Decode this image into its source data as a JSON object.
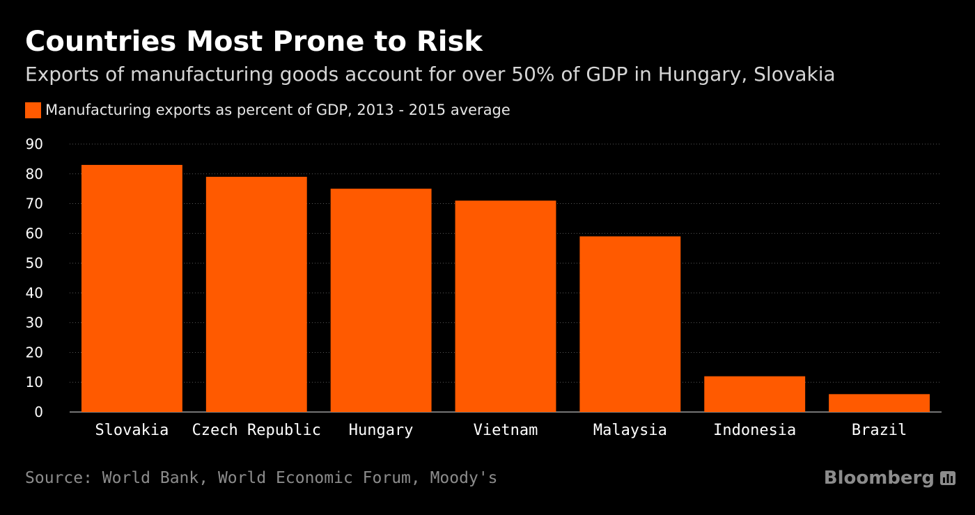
{
  "header": {
    "title": "Countries Most Prone to Risk",
    "subtitle": "Exports of manufacturing goods account for over 50% of GDP in Hungary, Slovakia"
  },
  "footer": {
    "source": "Source: World Bank, World Economic Forum, Moody's",
    "brand": "Bloomberg",
    "brand_icon": "bloomberg-logo-icon"
  },
  "colors": {
    "background": "#000000",
    "bar": "#ff5a00",
    "grid": "#5a5a5a",
    "axis_text": "#ffffff"
  },
  "chart_data": {
    "type": "bar",
    "title": "Countries Most Prone to Risk",
    "subtitle": "Exports of manufacturing goods account for over 50% of GDP in Hungary, Slovakia",
    "xlabel": "",
    "ylabel": "",
    "categories": [
      "Slovakia",
      "Czech Republic",
      "Hungary",
      "Vietnam",
      "Malaysia",
      "Indonesia",
      "Brazil"
    ],
    "series": [
      {
        "name": "Manufacturing exports as percent of GDP, 2013 - 2015 average",
        "values": [
          83,
          79,
          75,
          71,
          59,
          12,
          6
        ]
      }
    ],
    "ylim": [
      0,
      90
    ],
    "yticks": [
      0,
      10,
      20,
      30,
      40,
      50,
      60,
      70,
      80,
      90
    ],
    "grid": true,
    "legend_position": "top-left"
  }
}
